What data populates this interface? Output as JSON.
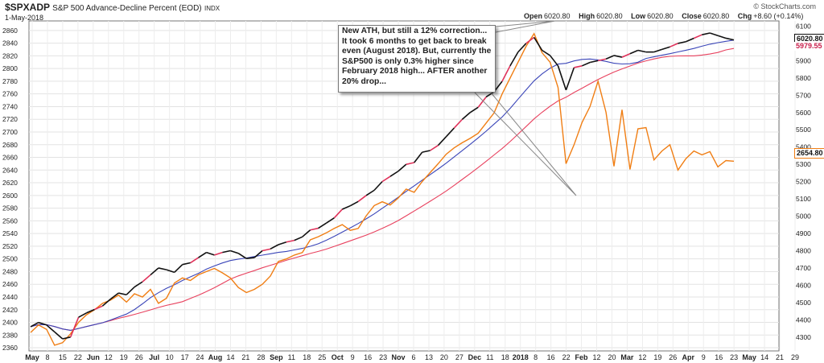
{
  "header": {
    "ticker": "$SPXADP",
    "description": "S&P 500 Advance-Decline Percent (EOD)",
    "exchange": "INDX",
    "date": "1-May-2018",
    "open_label": "Open",
    "open": "6020.80",
    "high_label": "High",
    "high": "6020.80",
    "low_label": "Low",
    "low": "6020.80",
    "close_label": "Close",
    "close": "6020.80",
    "chg_label": "Chg",
    "chg": "+8.60 (+0.14%)",
    "brand": "© StockCharts.com"
  },
  "annotation": "New ATH, but still a 12% correction... It took 6 months to get back to break even (August 2018). But, currently the S&P500 is only 0.3% higher since February 2018 high... AFTER another 20% drop...",
  "tags": {
    "black_last": "6020.80",
    "red_last": "5979.55",
    "orange_last": "2654.80"
  },
  "colors": {
    "black": "#111111",
    "red": "#e0315a",
    "blue": "#3a45b8",
    "pink": "#e8415e",
    "orange": "#f07e14"
  },
  "chart_data": {
    "type": "line",
    "x_ticks": [
      "May",
      "8",
      "15",
      "22",
      "Jun",
      "12",
      "19",
      "26",
      "Jul",
      "10",
      "17",
      "24",
      "Aug",
      "14",
      "21",
      "28",
      "Sep",
      "11",
      "18",
      "25",
      "Oct",
      "9",
      "16",
      "23",
      "Nov",
      "6",
      "13",
      "20",
      "27",
      "Dec",
      "11",
      "18",
      "2018",
      "8",
      "16",
      "22",
      "Feb",
      "12",
      "20",
      "Mar",
      "12",
      "19",
      "26",
      "Apr",
      "9",
      "16",
      "23",
      "May",
      "14",
      "21",
      "29"
    ],
    "left_axis": {
      "ticks": [
        2360,
        2380,
        2400,
        2420,
        2440,
        2460,
        2480,
        2500,
        2520,
        2540,
        2560,
        2580,
        2600,
        2620,
        2640,
        2660,
        2680,
        2700,
        2720,
        2740,
        2760,
        2780,
        2800,
        2820,
        2840,
        2860
      ],
      "ylim": [
        2355,
        2875
      ]
    },
    "right_axis": {
      "ticks": [
        4300,
        4400,
        4500,
        4600,
        4700,
        4800,
        4900,
        5000,
        5100,
        5200,
        5300,
        5400,
        5500,
        5600,
        5700,
        5800,
        5900,
        6000,
        6100
      ],
      "ylim": [
        4220,
        6130
      ]
    },
    "series": [
      {
        "name": "$SPXADP",
        "axis": "right",
        "values": [
          4360,
          4385,
          4370,
          4330,
          4290,
          4300,
          4415,
          4440,
          4460,
          4480,
          4520,
          4555,
          4545,
          4590,
          4620,
          4660,
          4700,
          4690,
          4675,
          4720,
          4730,
          4760,
          4790,
          4775,
          4790,
          4800,
          4785,
          4755,
          4760,
          4800,
          4810,
          4835,
          4850,
          4860,
          4880,
          4920,
          4930,
          4960,
          4990,
          5040,
          5060,
          5085,
          5120,
          5150,
          5200,
          5230,
          5260,
          5300,
          5310,
          5370,
          5380,
          5410,
          5460,
          5510,
          5560,
          5600,
          5630,
          5690,
          5720,
          5780,
          5870,
          5950,
          6000,
          6035,
          5960,
          5930,
          5870,
          5730,
          5860,
          5870,
          5890,
          5900,
          5910,
          5930,
          5920,
          5940,
          5960,
          5950,
          5950,
          5965,
          5980,
          6000,
          6010,
          6030,
          6050,
          6060,
          6045,
          6030,
          6020
        ]
      },
      {
        "name": "$SPX",
        "axis": "left",
        "values": [
          2384,
          2396,
          2389,
          2364,
          2368,
          2382,
          2400,
          2412,
          2420,
          2430,
          2435,
          2443,
          2432,
          2445,
          2440,
          2452,
          2430,
          2438,
          2462,
          2470,
          2466,
          2475,
          2480,
          2485,
          2478,
          2470,
          2455,
          2447,
          2452,
          2460,
          2473,
          2496,
          2500,
          2506,
          2510,
          2530,
          2535,
          2541,
          2548,
          2554,
          2545,
          2548,
          2568,
          2584,
          2590,
          2585,
          2596,
          2610,
          2605,
          2622,
          2636,
          2650,
          2665,
          2675,
          2683,
          2690,
          2698,
          2714,
          2730,
          2760,
          2785,
          2810,
          2835,
          2855,
          2825,
          2810,
          2770,
          2650,
          2680,
          2715,
          2740,
          2780,
          2731,
          2646,
          2735,
          2641,
          2705,
          2707,
          2656,
          2670,
          2680,
          2640,
          2658,
          2670,
          2664,
          2669,
          2645,
          2655,
          2654
        ]
      }
    ]
  }
}
